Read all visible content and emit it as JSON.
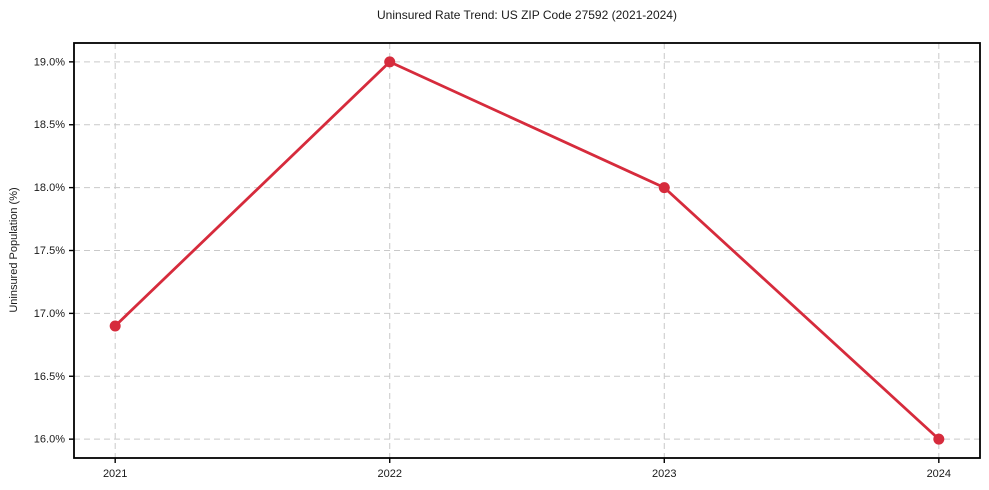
{
  "chart_data": {
    "type": "line",
    "title": "Uninsured Rate Trend: US ZIP Code 27592 (2021-2024)",
    "xlabel": "",
    "ylabel": "Uninsured Population (%)",
    "categories": [
      "2021",
      "2022",
      "2023",
      "2024"
    ],
    "x": [
      2021,
      2022,
      2023,
      2024
    ],
    "values": [
      16.9,
      19.0,
      18.0,
      16.0
    ],
    "xlim": [
      2020.85,
      2024.15
    ],
    "ylim": [
      15.85,
      19.15
    ],
    "yticks": [
      16.0,
      16.5,
      17.0,
      17.5,
      18.0,
      18.5,
      19.0
    ],
    "ytick_labels": [
      "16.0%",
      "16.5%",
      "17.0%",
      "17.5%",
      "18.0%",
      "18.5%",
      "19.0%"
    ],
    "xtick_labels": [
      "2021",
      "2022",
      "2023",
      "2024"
    ],
    "grid": true,
    "grid_style": "dashed",
    "legend": "none",
    "style": {
      "line_color": "#d62b3c",
      "marker": "circle",
      "marker_radius": 5.5,
      "line_width": 2.8,
      "grid_color": "#c9c9c9",
      "axis_color": "#000000",
      "text_color": "#1a1a1a",
      "background": "#ffffff"
    }
  }
}
